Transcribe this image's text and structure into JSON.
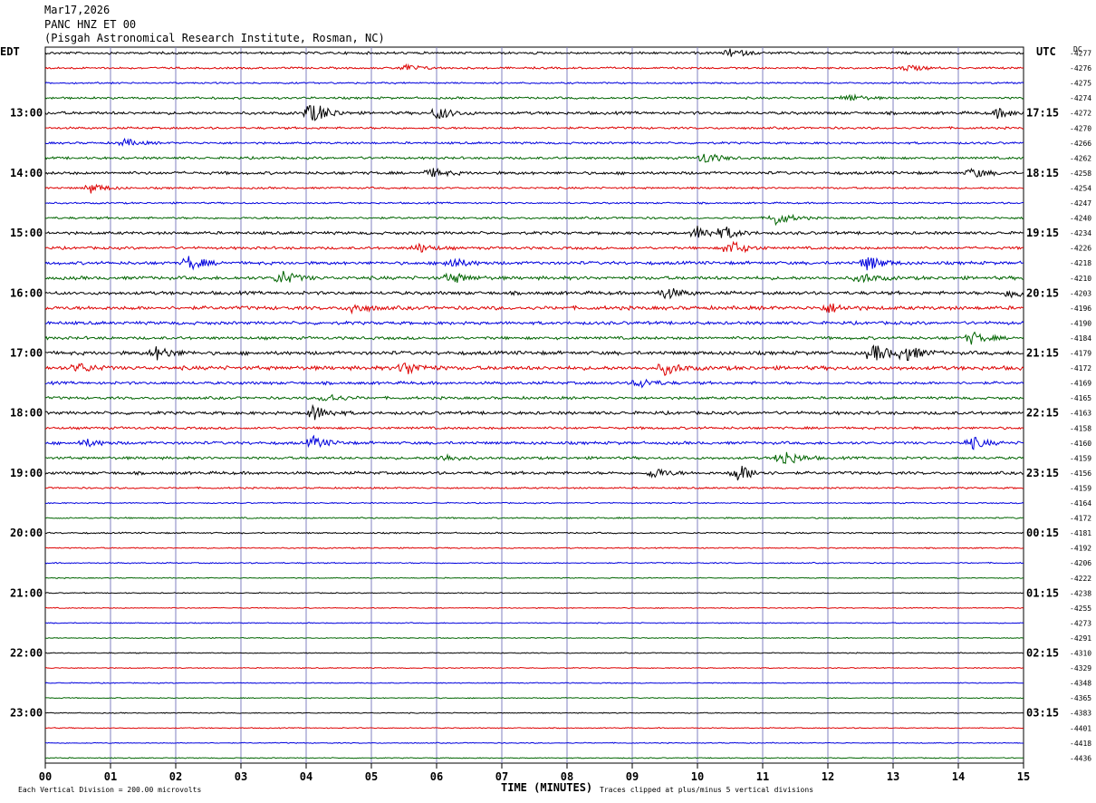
{
  "header": {
    "date": "Mar17,2026",
    "station": "PANC HNZ ET 00",
    "site": "(Pisgah Astronomical Research Institute, Rosman, NC)"
  },
  "chart_data": {
    "type": "line",
    "title": "Mar17,2026",
    "left_axis_label": "EDT",
    "right_axis_label": "UTC",
    "dc_label": "DC",
    "xlabel": "TIME (MINUTES)",
    "x_ticks": [
      "00",
      "01",
      "02",
      "03",
      "04",
      "05",
      "06",
      "07",
      "08",
      "09",
      "10",
      "11",
      "12",
      "13",
      "14",
      "15"
    ],
    "xlim": [
      0,
      15
    ],
    "left_hour_labels": [
      "13:00",
      "14:00",
      "15:00",
      "16:00",
      "17:00",
      "18:00",
      "19:00",
      "20:00",
      "21:00",
      "22:00",
      "23:00"
    ],
    "right_hour_labels": [
      "17:15",
      "18:15",
      "19:15",
      "20:15",
      "21:15",
      "22:15",
      "23:15",
      "00:15",
      "01:15",
      "02:15",
      "03:15"
    ],
    "first_labeled_row": 4,
    "rows_per_hour": 4,
    "dc_offsets": [
      "-4277",
      "-4276",
      "-4275",
      "-4274",
      "-4272",
      "-4270",
      "-4266",
      "-4262",
      "-4258",
      "-4254",
      "-4247",
      "-4240",
      "-4234",
      "-4226",
      "-4218",
      "-4210",
      "-4203",
      "-4196",
      "-4190",
      "-4184",
      "-4179",
      "-4172",
      "-4169",
      "-4165",
      "-4163",
      "-4158",
      "-4160",
      "-4159",
      "-4156",
      "-4159",
      "-4164",
      "-4172",
      "-4181",
      "-4192",
      "-4206",
      "-4222",
      "-4238",
      "-4255",
      "-4273",
      "-4291",
      "-4310",
      "-4329",
      "-4348",
      "-4365",
      "-4383",
      "-4401",
      "-4418",
      "-4436"
    ],
    "trace_colors": [
      "#000000",
      "#dd0000",
      "#0000dd",
      "#006400"
    ],
    "grid_color": "#8080c0",
    "scale_note": "Each Vertical Division =  200.00 microvolts",
    "clip_note": "Traces clipped at plus/minus 5 vertical divisions",
    "amplitude_levels": [
      0.5,
      0.4,
      0.35,
      0.45,
      0.6,
      0.45,
      0.45,
      0.5,
      0.6,
      0.4,
      0.35,
      0.45,
      0.6,
      0.55,
      0.65,
      0.7,
      0.7,
      0.75,
      0.65,
      0.6,
      0.75,
      0.8,
      0.6,
      0.55,
      0.65,
      0.5,
      0.6,
      0.55,
      0.6,
      0.35,
      0.25,
      0.3,
      0.3,
      0.25,
      0.25,
      0.2,
      0.2,
      0.2,
      0.2,
      0.2,
      0.2,
      0.2,
      0.2,
      0.2,
      0.2,
      0.2,
      0.2,
      0.2
    ],
    "events": [
      {
        "row": 0,
        "t": 10.5,
        "amp": 2.0
      },
      {
        "row": 1,
        "t": 5.5,
        "amp": 2.0
      },
      {
        "row": 1,
        "t": 13.2,
        "amp": 1.8
      },
      {
        "row": 3,
        "t": 12.3,
        "amp": 2.0
      },
      {
        "row": 4,
        "t": 4.05,
        "amp": 8.0
      },
      {
        "row": 4,
        "t": 6.0,
        "amp": 3.5
      },
      {
        "row": 4,
        "t": 14.6,
        "amp": 2.5
      },
      {
        "row": 6,
        "t": 1.2,
        "amp": 2.0
      },
      {
        "row": 7,
        "t": 10.1,
        "amp": 3.0
      },
      {
        "row": 8,
        "t": 5.9,
        "amp": 2.5
      },
      {
        "row": 8,
        "t": 14.2,
        "amp": 2.5
      },
      {
        "row": 9,
        "t": 0.7,
        "amp": 2.5
      },
      {
        "row": 11,
        "t": 11.2,
        "amp": 3.5
      },
      {
        "row": 12,
        "t": 10.0,
        "amp": 3.5
      },
      {
        "row": 12,
        "t": 10.4,
        "amp": 3.0
      },
      {
        "row": 13,
        "t": 10.5,
        "amp": 4.0
      },
      {
        "row": 13,
        "t": 5.7,
        "amp": 2.5
      },
      {
        "row": 14,
        "t": 2.2,
        "amp": 3.5
      },
      {
        "row": 14,
        "t": 6.2,
        "amp": 3.0
      },
      {
        "row": 14,
        "t": 12.6,
        "amp": 4.0
      },
      {
        "row": 15,
        "t": 3.6,
        "amp": 4.0
      },
      {
        "row": 15,
        "t": 6.2,
        "amp": 3.0
      },
      {
        "row": 15,
        "t": 12.5,
        "amp": 2.5
      },
      {
        "row": 16,
        "t": 9.5,
        "amp": 3.0
      },
      {
        "row": 16,
        "t": 14.8,
        "amp": 3.0
      },
      {
        "row": 17,
        "t": 4.7,
        "amp": 2.5
      },
      {
        "row": 17,
        "t": 12.0,
        "amp": 2.5
      },
      {
        "row": 19,
        "t": 14.2,
        "amp": 3.0
      },
      {
        "row": 20,
        "t": 1.7,
        "amp": 3.5
      },
      {
        "row": 20,
        "t": 12.7,
        "amp": 5.0
      },
      {
        "row": 20,
        "t": 13.2,
        "amp": 4.0
      },
      {
        "row": 21,
        "t": 5.5,
        "amp": 4.0
      },
      {
        "row": 21,
        "t": 0.5,
        "amp": 2.5
      },
      {
        "row": 21,
        "t": 9.5,
        "amp": 3.0
      },
      {
        "row": 22,
        "t": 9.1,
        "amp": 2.5
      },
      {
        "row": 23,
        "t": 4.3,
        "amp": 2.5
      },
      {
        "row": 24,
        "t": 4.1,
        "amp": 4.0
      },
      {
        "row": 26,
        "t": 4.1,
        "amp": 3.0
      },
      {
        "row": 26,
        "t": 14.2,
        "amp": 3.0
      },
      {
        "row": 26,
        "t": 0.6,
        "amp": 2.0
      },
      {
        "row": 27,
        "t": 11.3,
        "amp": 4.5
      },
      {
        "row": 27,
        "t": 6.1,
        "amp": 2.0
      },
      {
        "row": 28,
        "t": 10.6,
        "amp": 5.0
      },
      {
        "row": 28,
        "t": 9.3,
        "amp": 3.0
      }
    ]
  }
}
